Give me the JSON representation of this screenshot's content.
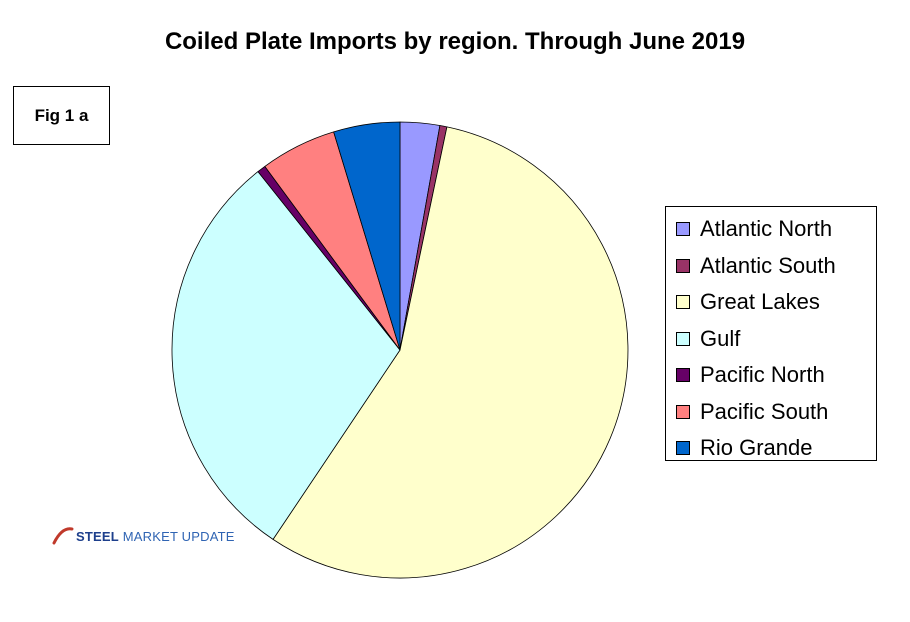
{
  "chart_data": {
    "type": "pie",
    "title": "Coiled Plate Imports by region. Through June 2019",
    "labels": [
      "Atlantic North",
      "Atlantic South",
      "Great Lakes",
      "Gulf",
      "Pacific North",
      "Pacific South",
      "Rio Grande"
    ],
    "values": [
      2.8,
      0.5,
      56.1,
      29.9,
      0.6,
      5.4,
      4.7
    ],
    "unit": "percent of total (estimated from slice angles)",
    "colors": [
      "#9999ff",
      "#993366",
      "#ffffcc",
      "#ccffff",
      "#660066",
      "#ff8080",
      "#0066cc"
    ],
    "start_angle": "12 o'clock",
    "direction": "clockwise",
    "legend_position": "right"
  },
  "figure_label": "Fig 1 a",
  "logo": {
    "text_strong": "STEEL",
    "text_light": "MARKET UPDATE",
    "icon": "curved-swoosh-icon"
  }
}
